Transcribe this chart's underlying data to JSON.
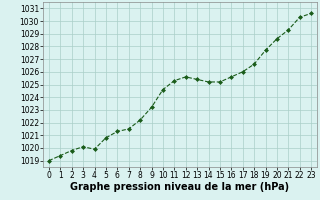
{
  "x": [
    0,
    1,
    2,
    3,
    4,
    5,
    6,
    7,
    8,
    9,
    10,
    11,
    12,
    13,
    14,
    15,
    16,
    17,
    18,
    19,
    20,
    21,
    22,
    23
  ],
  "y": [
    1019.0,
    1019.4,
    1019.8,
    1020.1,
    1019.9,
    1020.8,
    1021.3,
    1021.5,
    1022.2,
    1023.2,
    1024.6,
    1025.3,
    1025.6,
    1025.4,
    1025.2,
    1025.2,
    1025.6,
    1026.0,
    1026.6,
    1027.7,
    1028.6,
    1029.3,
    1030.3,
    1030.6
  ],
  "ylim": [
    1018.5,
    1031.5
  ],
  "yticks": [
    1019,
    1020,
    1021,
    1022,
    1023,
    1024,
    1025,
    1026,
    1027,
    1028,
    1029,
    1030,
    1031
  ],
  "xlim": [
    -0.5,
    23.5
  ],
  "xticks": [
    0,
    1,
    2,
    3,
    4,
    5,
    6,
    7,
    8,
    9,
    10,
    11,
    12,
    13,
    14,
    15,
    16,
    17,
    18,
    19,
    20,
    21,
    22,
    23
  ],
  "xlabel": "Graphe pression niveau de la mer (hPa)",
  "line_color": "#1a5c1a",
  "marker": "D",
  "marker_size": 2,
  "bg_color": "#daf2f0",
  "grid_color": "#aacfc8",
  "tick_fontsize": 5.5,
  "xlabel_fontsize": 7
}
